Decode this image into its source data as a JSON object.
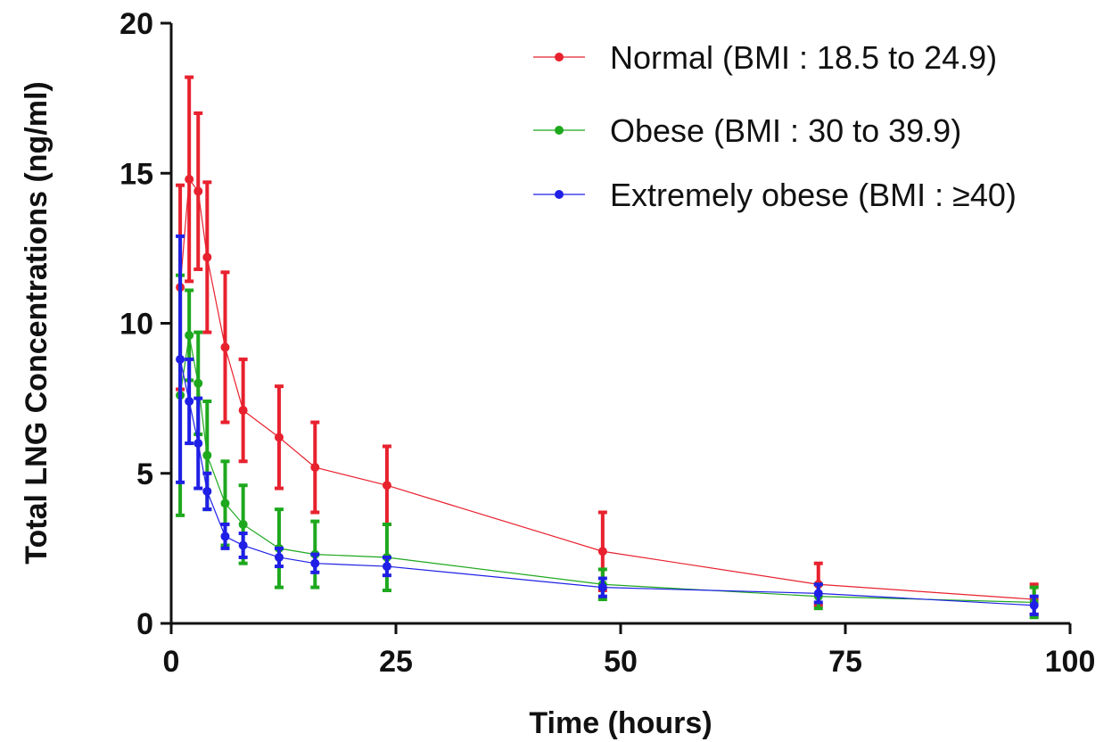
{
  "chart_data": {
    "type": "line",
    "xlabel": "Time (hours)",
    "ylabel": "Total LNG Concentrations (ng/ml)",
    "xlim": [
      0,
      100
    ],
    "ylim": [
      0,
      20
    ],
    "x_ticks": [
      0,
      25,
      50,
      75,
      100
    ],
    "y_ticks": [
      0,
      5,
      10,
      15,
      20
    ],
    "x_tick_labels": [
      "0",
      "25",
      "50",
      "75",
      "100"
    ],
    "y_tick_labels": [
      "0",
      "5",
      "10",
      "15",
      "20"
    ],
    "grid": false,
    "legend_position": "top-right",
    "series": [
      {
        "name": "Normal (BMI : 18.5 to 24.9)",
        "color": "#e8212e",
        "x": [
          1,
          2,
          3,
          4,
          6,
          8,
          12,
          16,
          24,
          48,
          72,
          96
        ],
        "y": [
          11.2,
          14.8,
          14.4,
          12.2,
          9.2,
          7.1,
          6.2,
          5.2,
          4.6,
          2.4,
          1.3,
          0.8
        ],
        "error": [
          3.4,
          3.4,
          2.6,
          2.5,
          2.5,
          1.7,
          1.7,
          1.5,
          1.3,
          1.3,
          0.7,
          0.5
        ]
      },
      {
        "name": "Obese (BMI : 30 to 39.9)",
        "color": "#1ea81e",
        "x": [
          1,
          2,
          3,
          4,
          6,
          8,
          12,
          16,
          24,
          48,
          72,
          96
        ],
        "y": [
          7.6,
          9.6,
          8.0,
          5.6,
          4.0,
          3.3,
          2.5,
          2.3,
          2.2,
          1.3,
          0.9,
          0.7
        ],
        "error": [
          4.0,
          1.5,
          1.7,
          1.8,
          1.4,
          1.3,
          1.3,
          1.1,
          1.1,
          0.5,
          0.4,
          0.5
        ]
      },
      {
        "name": "Extremely obese (BMI : ≥40)",
        "color": "#1f1fe6",
        "x": [
          1,
          2,
          3,
          4,
          6,
          8,
          12,
          16,
          24,
          48,
          72,
          96
        ],
        "y": [
          8.8,
          7.4,
          6.0,
          4.4,
          2.9,
          2.6,
          2.2,
          2.0,
          1.9,
          1.2,
          1.0,
          0.6
        ],
        "error": [
          4.1,
          1.4,
          1.5,
          0.6,
          0.4,
          0.4,
          0.3,
          0.3,
          0.3,
          0.3,
          0.3,
          0.3
        ]
      }
    ]
  }
}
